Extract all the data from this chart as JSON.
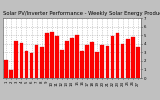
{
  "title": "Solar PV/Inverter Performance - Weekly Solar Energy Production",
  "bar_color": "#ff0000",
  "edge_color": "#cc0000",
  "background_color": "#c0c0c0",
  "plot_bg_color": "#ffffff",
  "grid_color": "#aaaaaa",
  "values": [
    2.1,
    0.9,
    4.3,
    4.1,
    3.2,
    2.9,
    3.9,
    3.6,
    5.2,
    5.4,
    4.9,
    3.3,
    4.3,
    4.7,
    5.0,
    3.2,
    3.9,
    4.2,
    3.0,
    3.8,
    3.7,
    4.9,
    5.3,
    4.0,
    4.6,
    4.8,
    3.6
  ],
  "ylim": [
    0,
    7
  ],
  "yticks": [
    0,
    1,
    2,
    3,
    4,
    5,
    6,
    7
  ],
  "title_fontsize": 3.8,
  "tick_fontsize": 2.8,
  "bar_width": 0.75
}
